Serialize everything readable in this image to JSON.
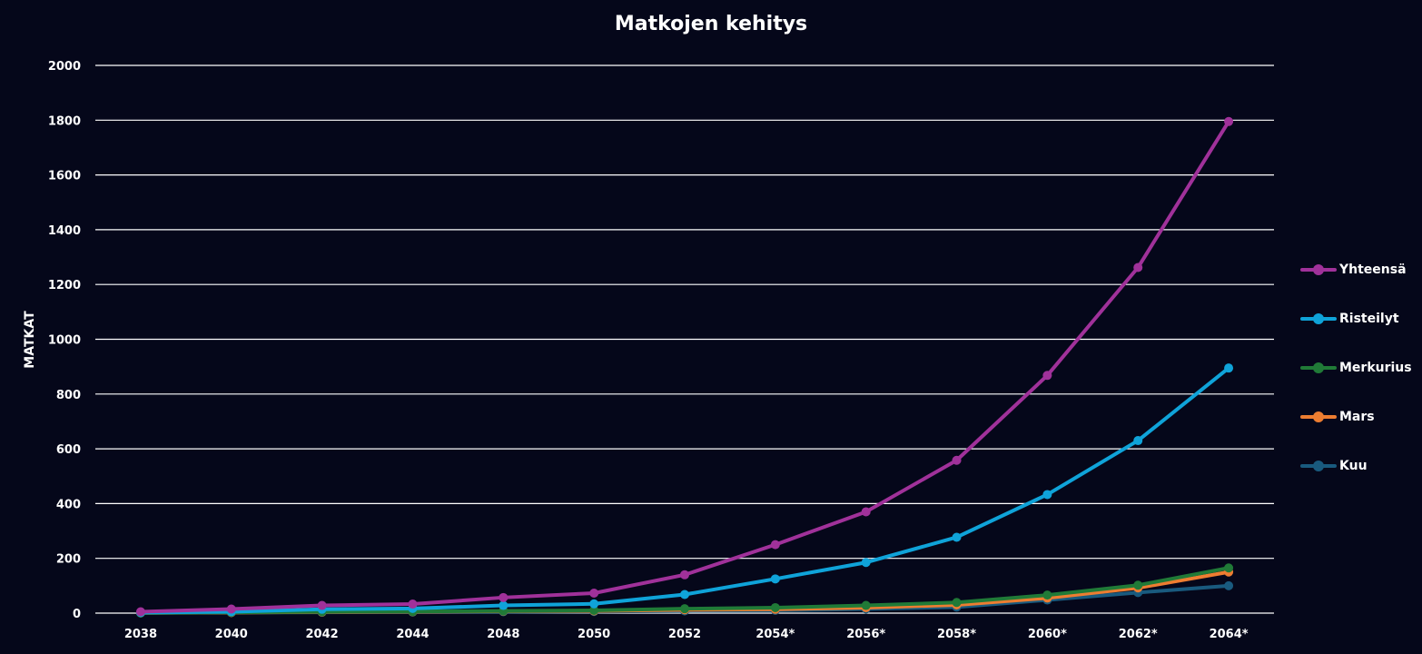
{
  "chart_data": {
    "type": "line",
    "title": "Matkojen kehitys",
    "xlabel": "",
    "ylabel": "MATKAT",
    "categories": [
      "2038",
      "2040",
      "2042",
      "2044",
      "2048",
      "2050",
      "2052",
      "2054*",
      "2056*",
      "2058*",
      "2060*",
      "2062*",
      "2064*"
    ],
    "ylim": [
      0,
      2000
    ],
    "yticks": [
      0,
      200,
      400,
      600,
      800,
      1000,
      1200,
      1400,
      1600,
      1800,
      2000
    ],
    "grid": true,
    "legend_position": "right",
    "series": [
      {
        "name": "Yhteensä",
        "color": "#a0319a",
        "values": [
          5,
          15,
          28,
          33,
          57,
          73,
          140,
          250,
          370,
          558,
          868,
          1262,
          1795
        ]
      },
      {
        "name": "Risteilyt",
        "color": "#0fa3d9",
        "values": [
          2,
          5,
          14,
          17,
          28,
          34,
          68,
          125,
          185,
          277,
          433,
          630,
          895
        ]
      },
      {
        "name": "Merkurius",
        "color": "#207a37",
        "values": [
          1,
          3,
          5,
          6,
          8,
          10,
          16,
          20,
          28,
          39,
          66,
          102,
          165
        ]
      },
      {
        "name": "Mars",
        "color": "#ed7d31",
        "values": [
          1,
          2,
          4,
          5,
          7,
          8,
          12,
          14,
          20,
          30,
          55,
          92,
          150
        ]
      },
      {
        "name": "Kuu",
        "color": "#195a7e",
        "values": [
          1,
          2,
          3,
          4,
          5,
          6,
          8,
          10,
          15,
          22,
          48,
          75,
          100
        ]
      }
    ]
  }
}
